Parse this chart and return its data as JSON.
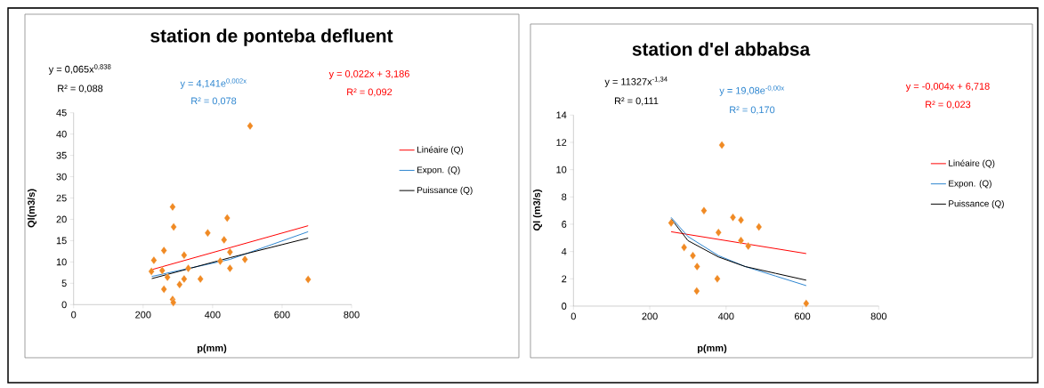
{
  "chart_data": [
    {
      "type": "scatter",
      "title": "station de ponteba defluent",
      "xlabel": "p(mm)",
      "ylabel": "Ql(m3/s)",
      "annotations": [
        "y = 0,065x$^{0,838}$",
        "R² = 0,088",
        "y = 4,141e$^{0,002x}$",
        "R² = 0,078",
        "y = 0,022x + 3,186",
        "R² = 0,092"
      ],
      "series": [
        {
          "color": "#f08a24",
          "marker": "diamond",
          "x": [
            231,
            224,
            260,
            260,
            270,
            255,
            285,
            288,
            285,
            287,
            305,
            318,
            318,
            330,
            365,
            386,
            422,
            433,
            442,
            450,
            450,
            493,
            508,
            675
          ],
          "values": [
            10.4,
            7.8,
            12.7,
            3.6,
            6.4,
            8.0,
            22.9,
            18.2,
            1.2,
            0.5,
            4.7,
            6.0,
            11.6,
            8.5,
            6.0,
            16.8,
            10.2,
            15.2,
            20.3,
            12.3,
            8.5,
            10.6,
            41.9,
            5.9
          ]
        },
        {
          "type": "line",
          "name": "Linéaire (Q)",
          "color": "#ff0000",
          "marker": "none",
          "x": [
            225,
            675
          ],
          "values": [
            8.2,
            18.5
          ]
        },
        {
          "type": "line",
          "name": "Expon. (Q)",
          "color": "#2e86d0",
          "marker": "none",
          "x": [
            225,
            450,
            675
          ],
          "values": [
            6.6,
            10.6,
            17.1
          ]
        },
        {
          "type": "line",
          "name": "Puissance (Q)",
          "color": "#000000",
          "marker": "none",
          "x": [
            225,
            450,
            675
          ],
          "values": [
            6.1,
            11.0,
            15.6
          ]
        }
      ],
      "xlim": [
        0,
        800
      ],
      "xticks": [
        0,
        200,
        400,
        600,
        800
      ],
      "ylim": [
        0,
        45
      ],
      "yticks": [
        0,
        5,
        10,
        15,
        20,
        25,
        30,
        35,
        40,
        45
      ],
      "legend": "right"
    },
    {
      "type": "scatter",
      "title": "station d'el abbabsa",
      "xlabel": "p(mm)",
      "ylabel": "Ql (m3/s)",
      "annotations": [
        "y = 11327x$^{-1,34}$",
        "R² = 0,111",
        "y = 19,08e$^{-0,00x}$",
        "R² = 0,170",
        "y = -0,004x + 6,718",
        "R² = 0,023"
      ],
      "series": [
        {
          "color": "#f08a24",
          "marker": "diamond",
          "x": [
            256,
            290,
            313,
            324,
            323,
            342,
            377,
            380,
            389,
            418,
            439,
            439,
            458,
            486,
            610
          ],
          "values": [
            6.1,
            4.3,
            3.7,
            2.9,
            1.1,
            7.0,
            2.0,
            5.4,
            11.8,
            6.5,
            6.3,
            4.8,
            4.4,
            5.8,
            0.2
          ]
        },
        {
          "type": "line",
          "name": "Linéaire (Q)",
          "color": "#ff0000",
          "marker": "none",
          "x": [
            256,
            610
          ],
          "values": [
            5.45,
            3.85
          ]
        },
        {
          "type": "line",
          "name": "Expon. (Q)",
          "color": "#2e86d0",
          "marker": "none",
          "x": [
            256,
            300,
            380,
            450,
            530,
            610
          ],
          "values": [
            6.5,
            5.1,
            3.7,
            2.9,
            2.2,
            1.5
          ]
        },
        {
          "type": "line",
          "name": "Puissance (Q)",
          "color": "#000000",
          "marker": "none",
          "x": [
            256,
            300,
            380,
            450,
            530,
            610
          ],
          "values": [
            6.4,
            4.8,
            3.6,
            2.9,
            2.4,
            1.9
          ]
        }
      ],
      "xlim": [
        0,
        800
      ],
      "xticks": [
        0,
        200,
        400,
        600,
        800
      ],
      "ylim": [
        0,
        14
      ],
      "yticks": [
        0,
        2,
        4,
        6,
        8,
        10,
        12,
        14
      ],
      "legend": "right"
    }
  ]
}
